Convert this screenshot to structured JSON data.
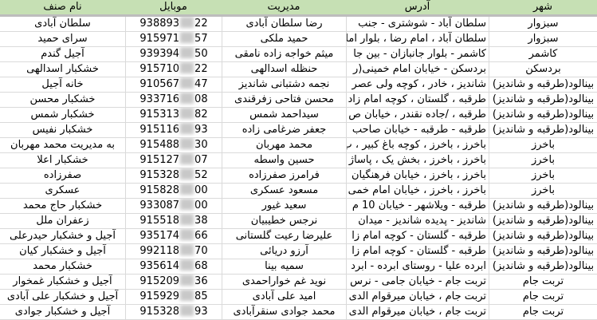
{
  "headers": {
    "city": "شهر",
    "address": "آدرس",
    "manager": "مدیریت",
    "mobile": "موبایل",
    "name": "نام صنف"
  },
  "rows": [
    {
      "city": "سبزوار",
      "address": "سلطان آباد - شوشتری - جنب",
      "manager": "رضا سلطان آبادی",
      "mobile_prefix": "938893",
      "mobile_suffix": "22",
      "name": "سلطان آبادی"
    },
    {
      "city": "سبزوار",
      "address": "سلطان آباد ، امام رضا ، بلوار اما",
      "manager": "حمید ملکی",
      "mobile_prefix": "915971",
      "mobile_suffix": "57",
      "name": "سرای حمید"
    },
    {
      "city": "کاشمر",
      "address": "کاشمر - بلوار جانبازان - بین جا",
      "manager": "میثم خواجه زاده نامقی",
      "mobile_prefix": "939394",
      "mobile_suffix": "50",
      "name": "آجیل گندم"
    },
    {
      "city": "بردسکن",
      "address": "بردسکن - خیابان امام خمینی(ر",
      "manager": "حنظله اسدالهی",
      "mobile_prefix": "915710",
      "mobile_suffix": "22",
      "name": "خشکبار اسدالهی"
    },
    {
      "city": "بینالود(طرقبه و شاندیز)",
      "address": "شاندیز ، خادر ، کوچه ولی عصر",
      "manager": "نجمه دشتبانی شاندیز",
      "mobile_prefix": "910567",
      "mobile_suffix": "47",
      "name": "خانه آجیل"
    },
    {
      "city": "بینالود(طرقبه و شاندیز)",
      "address": "طرقبه ، گلستان ، کوچه امام زاد",
      "manager": "محسن فتاحی زفرقندی",
      "mobile_prefix": "933716",
      "mobile_suffix": "08",
      "name": "خشکبار محسن"
    },
    {
      "city": "بینالود(طرقبه و شاندیز)",
      "address": "طرقبه ، /جاده نقندر ، خیابان ص",
      "manager": "سیداحمد شمس",
      "mobile_prefix": "915313",
      "mobile_suffix": "82",
      "name": "خشکبار شمس"
    },
    {
      "city": "بینالود(طرقبه و شاندیز)",
      "address": "طرقبه - طرقبه - خیابان صاحب",
      "manager": "جعفر ضرغامی زاده",
      "mobile_prefix": "915116",
      "mobile_suffix": "93",
      "name": "خشکبار نفیس"
    },
    {
      "city": "باخرز",
      "address": "باخرز ، باخرز ، کوچه باغ کبیر ، ب",
      "manager": "محمد مهربان",
      "mobile_prefix": "915488",
      "mobile_suffix": "30",
      "name": "به مدیریت محمد مهربان"
    },
    {
      "city": "باخرز",
      "address": "باخرز ، باخرز ، بخش یک ، پاساژ",
      "manager": "حسین واسطه",
      "mobile_prefix": "915127",
      "mobile_suffix": "07",
      "name": "خشکبار اعلا"
    },
    {
      "city": "باخرز",
      "address": "باخرز ، باخرز ، خیابان فرهنگیان",
      "manager": "فرامرز صفرزاده",
      "mobile_prefix": "915328",
      "mobile_suffix": "52",
      "name": "صفرزاده"
    },
    {
      "city": "باخرز",
      "address": "باخرز ، باخرز ، خیابان امام خمی",
      "manager": "مسعود عسکری",
      "mobile_prefix": "915828",
      "mobile_suffix": "00",
      "name": "عسکری"
    },
    {
      "city": "بینالود(طرقبه و شاندیز)",
      "address": "طرقبه - ویلاشهر - خیابان 10 م",
      "manager": "سعید غیور",
      "mobile_prefix": "933087",
      "mobile_suffix": "00",
      "name": "خشکبار حاج محمد"
    },
    {
      "city": "بینالود(طرقبه و شاندیز)",
      "address": "شاندیز - پدیده شاندیز - میدان",
      "manager": "نرجس خطیبیان",
      "mobile_prefix": "915518",
      "mobile_suffix": "38",
      "name": "زعفران ملل"
    },
    {
      "city": "بینالود(طرقبه و شاندیز)",
      "address": "طرقبه - گلستان - کوچه امام زا",
      "manager": "علیرضا رعیت گلستانی",
      "mobile_prefix": "935174",
      "mobile_suffix": "66",
      "name": "آجیل و خشکبار حیدرعلی"
    },
    {
      "city": "بینالود(طرقبه و شاندیز)",
      "address": "طرقبه - گلستان - کوچه امام زا",
      "manager": "آرزو دریائی",
      "mobile_prefix": "992118",
      "mobile_suffix": "70",
      "name": "آجیل و خشکبار کیان"
    },
    {
      "city": "بینالود(طرقبه و شاندیز)",
      "address": "ابرده علیا - روستای ابرده - ابرد",
      "manager": "سمیه بینا",
      "mobile_prefix": "935614",
      "mobile_suffix": "68",
      "name": "خشکبار محمد"
    },
    {
      "city": "تربت جام",
      "address": "تربت جام - خیابان جامی - نرس",
      "manager": "نوید غم خواراحمدی",
      "mobile_prefix": "915209",
      "mobile_suffix": "36",
      "name": "آجیل و خشکبار غمخوار"
    },
    {
      "city": "تربت جام",
      "address": "تربت جام ، خیابان میرقوام الدی",
      "manager": "امید علی آبادی",
      "mobile_prefix": "915929",
      "mobile_suffix": "85",
      "name": "آجیل و خشکبار علی آبادی"
    },
    {
      "city": "تربت جام",
      "address": "تربت جام ، خیابان میرقوام الدی",
      "manager": "محمد جوادی سنقرآبادی",
      "mobile_prefix": "915328",
      "mobile_suffix": "93",
      "name": "آجیل و خشکبار جوادی"
    }
  ]
}
